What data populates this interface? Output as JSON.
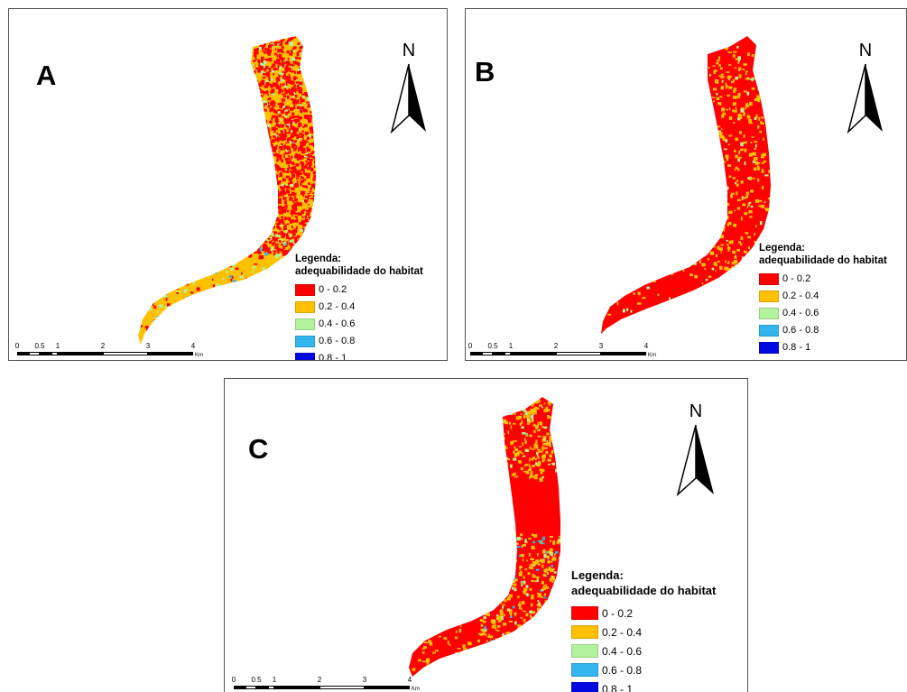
{
  "colors": {
    "c0": "#ff0000",
    "c1": "#ffc000",
    "c2": "#b2f29e",
    "c3": "#33b6f0",
    "c4": "#0008e0"
  },
  "legend": {
    "title_line1": "Legenda:",
    "title_line2": "adequabilidade do habitat",
    "classes": [
      {
        "label": "0 - 0.2",
        "color": "#ff0000"
      },
      {
        "label": "0.2 - 0.4",
        "color": "#ffc000"
      },
      {
        "label": "0.4 - 0.6",
        "color": "#b2f29e"
      },
      {
        "label": "0.6 - 0.8",
        "color": "#33b6f0"
      },
      {
        "label": "0.8 - 1",
        "color": "#0008e0"
      }
    ]
  },
  "north_arrow": {
    "letter": "N",
    "icon": "north-arrow-icon"
  },
  "scale": {
    "ticks": [
      "0",
      "0.5",
      "1",
      "2",
      "3",
      "4"
    ],
    "unit": "Km"
  },
  "panels": {
    "a": {
      "letter": "A",
      "dominant_class": "0.2 - 0.4"
    },
    "b": {
      "letter": "B",
      "dominant_class": "0 - 0.2"
    },
    "c": {
      "letter": "C",
      "dominant_class": "0 - 0.2"
    }
  }
}
